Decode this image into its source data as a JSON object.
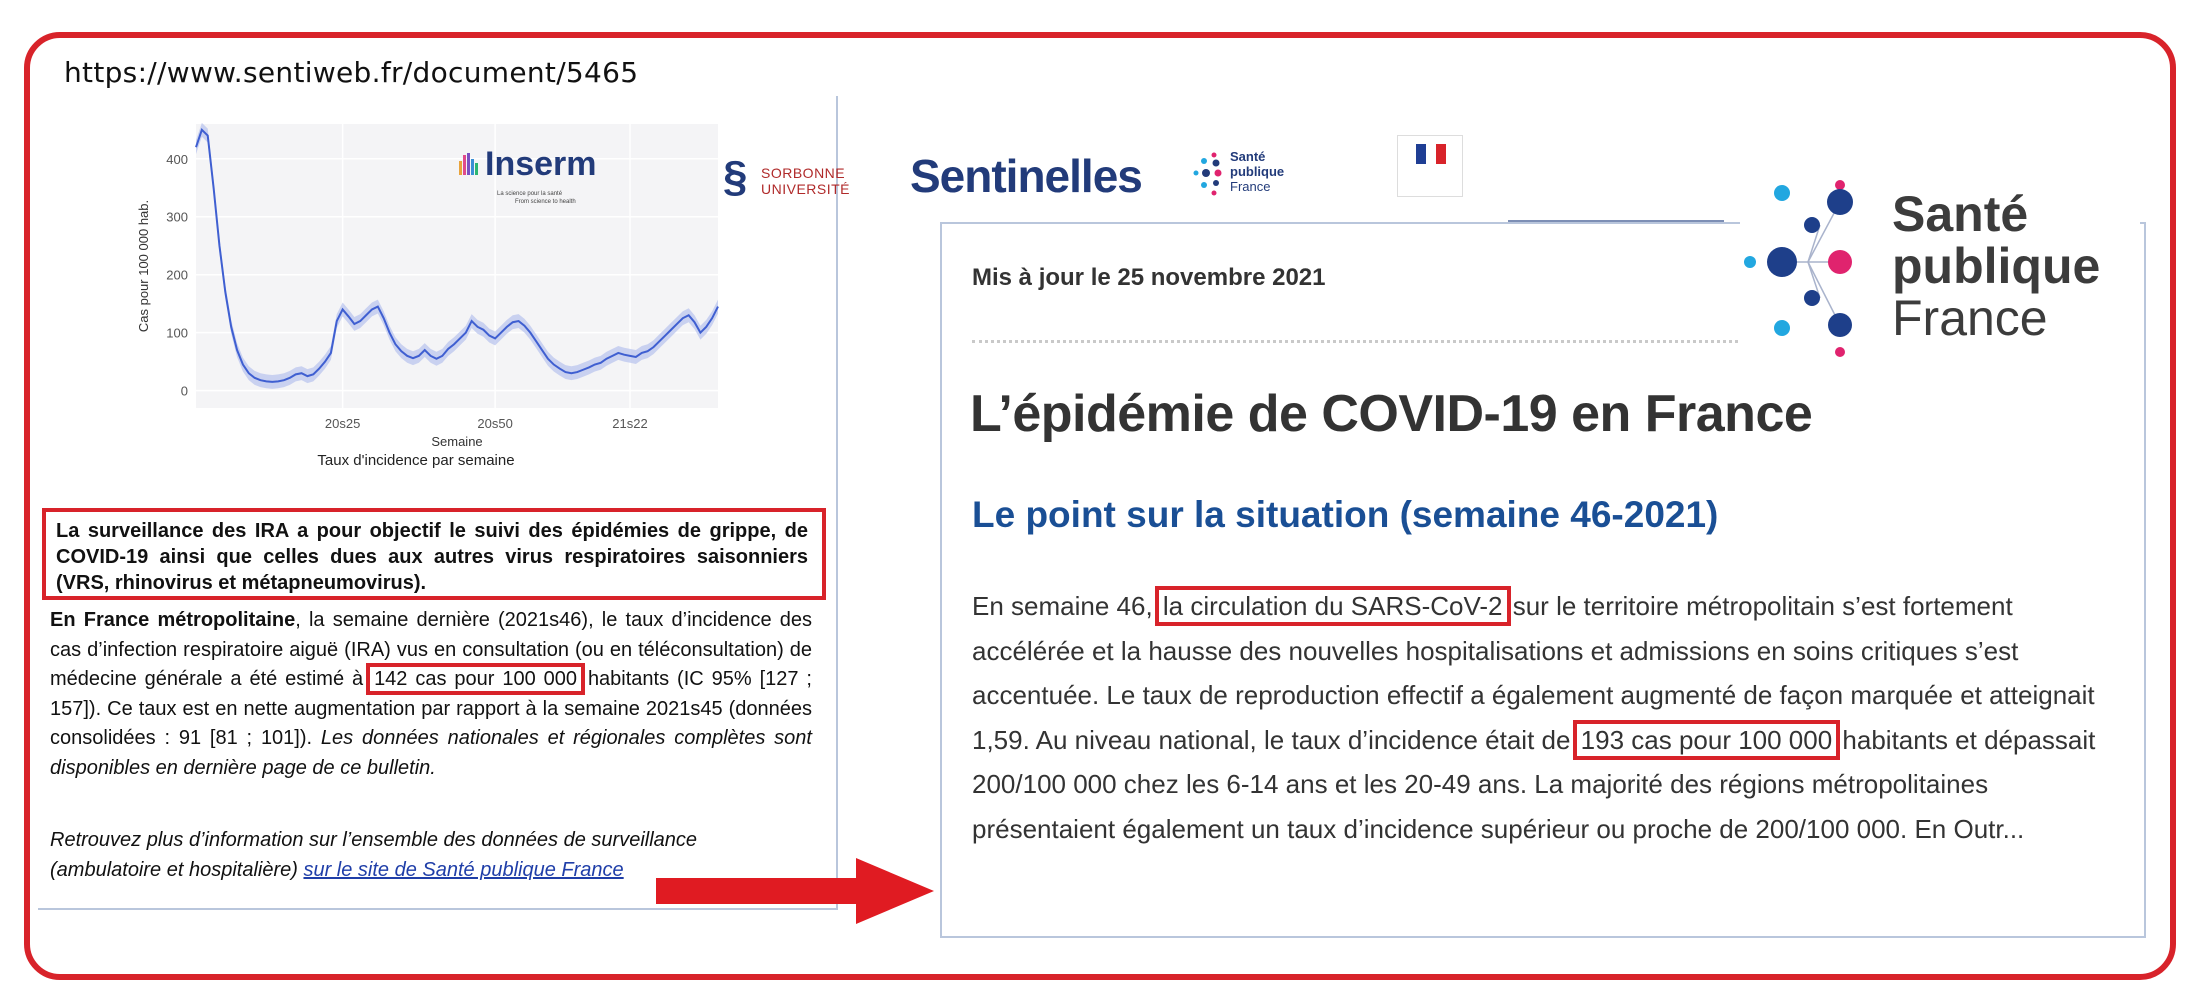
{
  "source_url": "https://www.sentiweb.fr/document/5465",
  "colors": {
    "highlight_red": "#d8232a",
    "spf_blue": "#1a4f95",
    "link_blue": "#1f3ea8",
    "chart_line": "#3f5fd1"
  },
  "logos": {
    "inserm": {
      "name": "Inserm",
      "tagline_fr": "La science pour la santé",
      "tagline_en": "From science to health"
    },
    "sorbonne": {
      "line1": "SORBONNE",
      "line2": "UNIVERSITÉ"
    },
    "sentinelles": {
      "name": "Sentinelles"
    },
    "spf_small": {
      "line1": "Santé",
      "line2": "publique",
      "line3": "France"
    },
    "republique": {
      "icon": "marianne-flag-icon"
    }
  },
  "chart_data": {
    "type": "line",
    "title": "Taux d'incidence par semaine",
    "xlabel": "Semaine",
    "ylabel": "Cas pour 100 000 hab.",
    "x_ticks": [
      "20s25",
      "20s50",
      "21s22"
    ],
    "y_ticks": [
      0,
      100,
      200,
      300,
      400
    ],
    "ylim": [
      -30,
      460
    ],
    "x_range": [
      1,
      90
    ],
    "grid": true,
    "series": [
      {
        "values": [
          [
            1,
            420
          ],
          [
            2,
            450
          ],
          [
            3,
            440
          ],
          [
            4,
            350
          ],
          [
            5,
            250
          ],
          [
            6,
            170
          ],
          [
            7,
            110
          ],
          [
            8,
            70
          ],
          [
            9,
            45
          ],
          [
            10,
            30
          ],
          [
            11,
            22
          ],
          [
            12,
            18
          ],
          [
            13,
            16
          ],
          [
            14,
            15
          ],
          [
            15,
            16
          ],
          [
            16,
            18
          ],
          [
            17,
            22
          ],
          [
            18,
            28
          ],
          [
            19,
            30
          ],
          [
            20,
            25
          ],
          [
            21,
            28
          ],
          [
            22,
            38
          ],
          [
            23,
            50
          ],
          [
            24,
            65
          ],
          [
            25,
            120
          ],
          [
            26,
            140
          ],
          [
            27,
            128
          ],
          [
            28,
            115
          ],
          [
            29,
            120
          ],
          [
            30,
            130
          ],
          [
            31,
            140
          ],
          [
            32,
            145
          ],
          [
            33,
            125
          ],
          [
            34,
            100
          ],
          [
            35,
            80
          ],
          [
            36,
            68
          ],
          [
            37,
            60
          ],
          [
            38,
            56
          ],
          [
            39,
            60
          ],
          [
            40,
            70
          ],
          [
            41,
            60
          ],
          [
            42,
            55
          ],
          [
            43,
            60
          ],
          [
            44,
            72
          ],
          [
            45,
            80
          ],
          [
            46,
            90
          ],
          [
            47,
            100
          ],
          [
            48,
            120
          ],
          [
            49,
            110
          ],
          [
            50,
            105
          ],
          [
            51,
            95
          ],
          [
            52,
            90
          ],
          [
            53,
            100
          ],
          [
            54,
            110
          ],
          [
            55,
            118
          ],
          [
            56,
            120
          ],
          [
            57,
            112
          ],
          [
            58,
            100
          ],
          [
            59,
            85
          ],
          [
            60,
            70
          ],
          [
            61,
            55
          ],
          [
            62,
            45
          ],
          [
            63,
            38
          ],
          [
            64,
            32
          ],
          [
            65,
            30
          ],
          [
            66,
            32
          ],
          [
            67,
            36
          ],
          [
            68,
            40
          ],
          [
            69,
            45
          ],
          [
            70,
            48
          ],
          [
            71,
            55
          ],
          [
            72,
            60
          ],
          [
            73,
            65
          ],
          [
            74,
            62
          ],
          [
            75,
            60
          ],
          [
            76,
            58
          ],
          [
            77,
            65
          ],
          [
            78,
            68
          ],
          [
            79,
            75
          ],
          [
            80,
            85
          ],
          [
            81,
            95
          ],
          [
            82,
            105
          ],
          [
            83,
            115
          ],
          [
            84,
            125
          ],
          [
            85,
            130
          ],
          [
            86,
            118
          ],
          [
            87,
            100
          ],
          [
            88,
            110
          ],
          [
            89,
            125
          ],
          [
            90,
            145
          ]
        ]
      }
    ]
  },
  "bulletin": {
    "ira_text": "La surveillance des IRA a pour objectif le suivi des épidémies de grippe, de COVID-19 ainsi que celles dues aux autres virus respiratoires saisonniers (VRS, rhinovirus et métapneumovirus).",
    "p_bold": "En France métropolitaine",
    "p_part1": ", la semaine dernière (2021s46), le taux d’incidence des cas d’infection respiratoire aiguë (IRA) vus en consultation (ou en téléconsultation) de médecine générale a été estimé à ",
    "p_highlight": "142 cas pour 100 000",
    "p_part2": " habitants (IC 95% [127 ; 157]). Ce taux est en nette augmentation par rapport à la semaine 2021s45 (données consolidées : 91 [81 ; 101]). ",
    "p_italic": "Les données nationales et régionales complètes sont disponibles en dernière page de ce bulletin.",
    "more_text": "Retrouvez plus d’information sur l’ensemble des données de surveillance (ambulatoire et hospitalière) ",
    "more_link": "sur le site de Santé publique France"
  },
  "spf_page": {
    "updated": "Mis à jour le 25 novembre 2021",
    "title": "L’épidémie de COVID-19 en France",
    "subtitle": "Le point sur la situation (semaine 46-2021)",
    "body_part1": "En semaine 46, ",
    "body_highlight1": "la circulation du SARS-CoV-2",
    "body_part2": " sur le territoire métropolitain s’est fortement accélérée et la hausse des nouvelles hospitalisations et admissions en soins critiques s’est accentuée. Le taux de reproduction effectif a également augmenté de façon marquée et atteignait 1,59. Au niveau national, le taux d’incidence était de ",
    "body_highlight2": "193 cas pour 100 000",
    "body_part3": " habitants et dépassait 200/100 000 chez les 6-14 ans et les 20-49 ans. La majorité des régions métropolitaines présentaient également un taux d’incidence supérieur ou proche de 200/100 000. En Outr..."
  },
  "spf_big_logo": {
    "line1": "Santé",
    "line2": "publique",
    "line3": "France"
  }
}
